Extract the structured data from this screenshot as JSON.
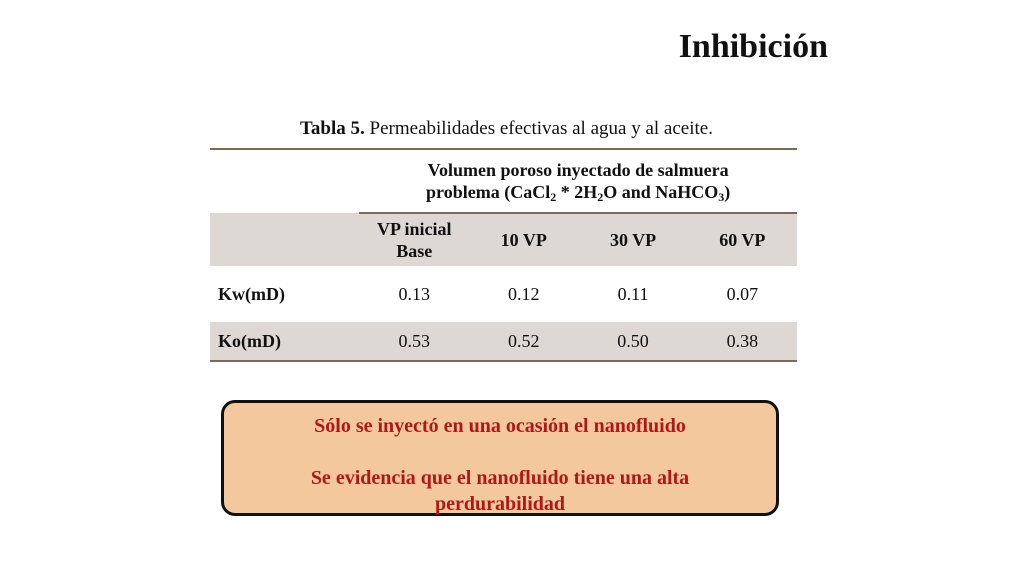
{
  "slide": {
    "title": "Inhibición"
  },
  "caption": {
    "label": "Tabla 5.",
    "text": " Permeabilidades efectivas al agua y al aceite."
  },
  "table": {
    "group_header": {
      "line1": "Volumen poroso inyectado de salmuera",
      "line2_a": "problema (CaCl",
      "line2_sub1": "2",
      "line2_b": " * 2H",
      "line2_sub2": "2",
      "line2_c": "O and NaHCO",
      "line2_sub3": "3",
      "line2_d": ")"
    },
    "columns": [
      "VP inicial Base",
      "10 VP",
      "30 VP",
      "60 VP"
    ],
    "rows": [
      {
        "label": "Kw(mD)",
        "values": [
          "0.13",
          "0.12",
          "0.11",
          "0.07"
        ]
      },
      {
        "label": "Ko(mD)",
        "values": [
          "0.53",
          "0.52",
          "0.50",
          "0.38"
        ]
      }
    ]
  },
  "note": {
    "line1": "Sólo se inyectó en una ocasión el nanofluido",
    "line2": "Se evidencia que el nanofluido tiene una alta perdurabilidad"
  },
  "colors": {
    "header_fill": "#ded8d4",
    "note_fill": "#f3c89c",
    "note_text": "#b01818"
  }
}
